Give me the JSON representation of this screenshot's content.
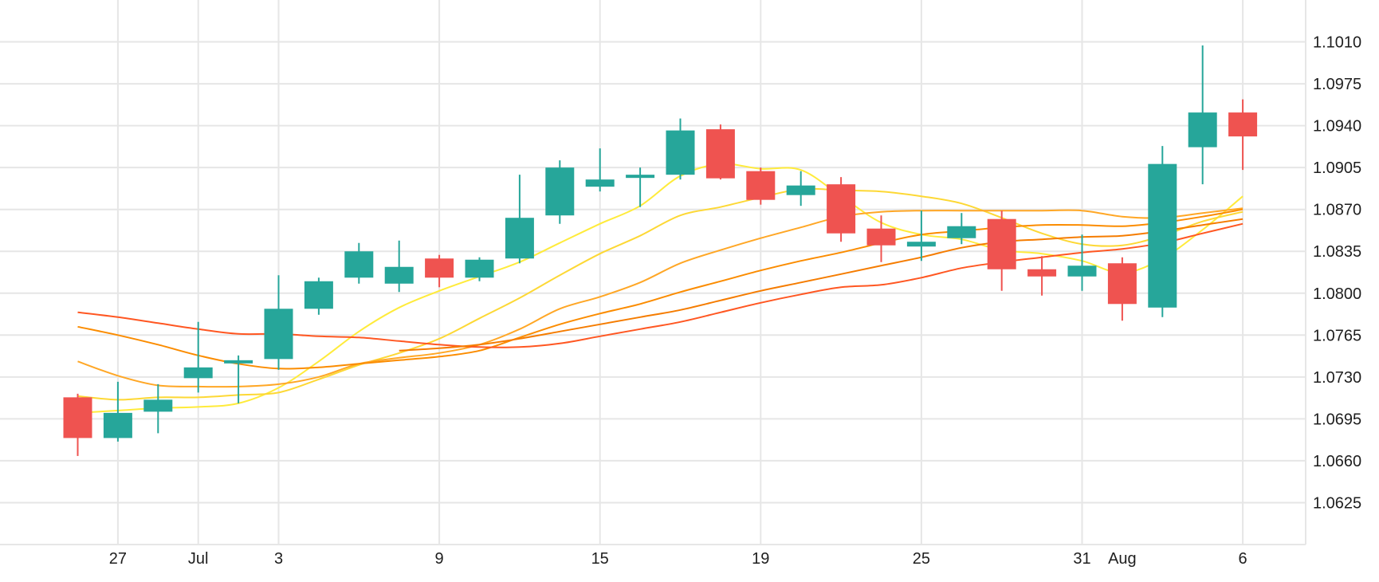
{
  "chart_data": {
    "type": "candlestick",
    "title": "",
    "xlabel": "",
    "ylabel": "",
    "ylim": [
      1.059,
      1.1045
    ],
    "grid": true,
    "y_ticks": [
      "1.0625",
      "1.0660",
      "1.0695",
      "1.0730",
      "1.0765",
      "1.0800",
      "1.0835",
      "1.0870",
      "1.0905",
      "1.0940",
      "1.0975",
      "1.1010"
    ],
    "x_ticks": [
      {
        "index": 1,
        "label": "27"
      },
      {
        "index": 3,
        "label": "Jul"
      },
      {
        "index": 5,
        "label": "3"
      },
      {
        "index": 9,
        "label": "9"
      },
      {
        "index": 13,
        "label": "15"
      },
      {
        "index": 17,
        "label": "19"
      },
      {
        "index": 21,
        "label": "25"
      },
      {
        "index": 25,
        "label": "31"
      },
      {
        "index": 26,
        "label": "Aug"
      },
      {
        "index": 29,
        "label": "6"
      }
    ],
    "x_grid_indices": [
      1,
      3,
      5,
      9,
      13,
      17,
      21,
      25,
      29
    ],
    "colors": {
      "up": "#26a69a",
      "down": "#ef5350"
    },
    "candles": [
      {
        "open": 1.0713,
        "high": 1.0716,
        "low": 1.0664,
        "close": 1.0679
      },
      {
        "open": 1.0679,
        "high": 1.0726,
        "low": 1.0676,
        "close": 1.07
      },
      {
        "open": 1.0701,
        "high": 1.0724,
        "low": 1.0683,
        "close": 1.0711
      },
      {
        "open": 1.0729,
        "high": 1.0776,
        "low": 1.0717,
        "close": 1.0738
      },
      {
        "open": 1.0742,
        "high": 1.0748,
        "low": 1.0708,
        "close": 1.0744
      },
      {
        "open": 1.0745,
        "high": 1.0815,
        "low": 1.0736,
        "close": 1.0787
      },
      {
        "open": 1.0787,
        "high": 1.0813,
        "low": 1.0782,
        "close": 1.081
      },
      {
        "open": 1.0813,
        "high": 1.0842,
        "low": 1.0808,
        "close": 1.0835
      },
      {
        "open": 1.0808,
        "high": 1.0844,
        "low": 1.0801,
        "close": 1.0822
      },
      {
        "open": 1.0829,
        "high": 1.0832,
        "low": 1.0805,
        "close": 1.0813
      },
      {
        "open": 1.0813,
        "high": 1.083,
        "low": 1.081,
        "close": 1.0828
      },
      {
        "open": 1.0829,
        "high": 1.0899,
        "low": 1.0825,
        "close": 1.0863
      },
      {
        "open": 1.0865,
        "high": 1.0911,
        "low": 1.0858,
        "close": 1.0905
      },
      {
        "open": 1.0889,
        "high": 1.0921,
        "low": 1.0885,
        "close": 1.0895
      },
      {
        "open": 1.0897,
        "high": 1.0905,
        "low": 1.0872,
        "close": 1.0899
      },
      {
        "open": 1.0899,
        "high": 1.0946,
        "low": 1.0895,
        "close": 1.0936
      },
      {
        "open": 1.0937,
        "high": 1.0941,
        "low": 1.0895,
        "close": 1.0896
      },
      {
        "open": 1.0902,
        "high": 1.0905,
        "low": 1.0874,
        "close": 1.0878
      },
      {
        "open": 1.0882,
        "high": 1.0902,
        "low": 1.0873,
        "close": 1.089
      },
      {
        "open": 1.0891,
        "high": 1.0897,
        "low": 1.0843,
        "close": 1.085
      },
      {
        "open": 1.0854,
        "high": 1.0865,
        "low": 1.0826,
        "close": 1.084
      },
      {
        "open": 1.0839,
        "high": 1.0869,
        "low": 1.0827,
        "close": 1.0843
      },
      {
        "open": 1.0846,
        "high": 1.0867,
        "low": 1.0841,
        "close": 1.0856
      },
      {
        "open": 1.0862,
        "high": 1.0869,
        "low": 1.0802,
        "close": 1.082
      },
      {
        "open": 1.082,
        "high": 1.0831,
        "low": 1.0798,
        "close": 1.0814
      },
      {
        "open": 1.0814,
        "high": 1.0849,
        "low": 1.0802,
        "close": 1.0823
      },
      {
        "open": 1.0825,
        "high": 1.083,
        "low": 1.0777,
        "close": 1.0791
      },
      {
        "open": 1.0788,
        "high": 1.0923,
        "low": 1.078,
        "close": 1.0908
      },
      {
        "open": 1.0922,
        "high": 1.1007,
        "low": 1.0891,
        "close": 1.0951
      },
      {
        "open": 1.0951,
        "high": 1.0962,
        "low": 1.0903,
        "close": 1.0931
      }
    ],
    "series": [
      {
        "color": "#ffeb3b",
        "values": [
          1.07,
          1.0702,
          1.0704,
          1.0705,
          1.0708,
          1.0721,
          1.0743,
          1.0768,
          1.0788,
          1.0802,
          1.0814,
          1.0826,
          1.0842,
          1.0858,
          1.0873,
          1.0898,
          1.0908,
          1.0904,
          1.0903,
          1.0881,
          1.0859,
          1.0849,
          1.0845,
          1.0836,
          1.0833,
          1.0827,
          1.0817,
          1.0829,
          1.0853,
          1.0881
        ]
      },
      {
        "color": "#fdd835",
        "values": [
          1.0714,
          1.0711,
          1.0713,
          1.0713,
          1.0715,
          1.0717,
          1.0728,
          1.074,
          1.075,
          1.0762,
          1.0779,
          1.0796,
          1.0815,
          1.0833,
          1.0848,
          1.0865,
          1.0872,
          1.088,
          1.0887,
          1.0886,
          1.0885,
          1.0881,
          1.0875,
          1.0863,
          1.085,
          1.0841,
          1.084,
          1.0848,
          1.086,
          1.0868
        ]
      },
      {
        "color": "#ffa726",
        "values": [
          1.0743,
          1.0731,
          1.0723,
          1.0722,
          1.0722,
          1.0724,
          1.073,
          1.0741,
          1.0746,
          1.075,
          1.0757,
          1.077,
          1.0787,
          1.0797,
          1.0809,
          1.0825,
          1.0836,
          1.0846,
          1.0855,
          1.0864,
          1.0868,
          1.0869,
          1.0869,
          1.0869,
          1.0869,
          1.0869,
          1.0864,
          1.0863,
          1.0867,
          1.0871
        ]
      },
      {
        "color": "#fb8c00",
        "values": [
          1.0772,
          1.0765,
          1.0757,
          1.0748,
          1.0741,
          1.0737,
          1.0738,
          1.0741,
          1.0744,
          1.0747,
          1.0752,
          1.0763,
          1.0774,
          1.0783,
          1.0791,
          1.0801,
          1.081,
          1.0819,
          1.0827,
          1.0834,
          1.0842,
          1.0849,
          1.0852,
          1.0855,
          1.0857,
          1.0857,
          1.0856,
          1.0859,
          1.0864,
          1.087
        ]
      },
      {
        "color": "#ff5722",
        "values": [
          1.0784,
          1.078,
          1.0775,
          1.077,
          1.0766,
          1.0766,
          1.0764,
          1.0763,
          1.076,
          1.0757,
          1.0755,
          1.0755,
          1.0758,
          1.0764,
          1.077,
          1.0776,
          1.0784,
          1.0792,
          1.0799,
          1.0805,
          1.0807,
          1.0813,
          1.0821,
          1.0826,
          1.083,
          1.0834,
          1.0837,
          1.0842,
          1.085,
          1.0858
        ]
      },
      {
        "color": "#f57c00",
        "values": [
          null,
          null,
          null,
          null,
          null,
          null,
          null,
          null,
          1.0752,
          1.0754,
          1.0757,
          1.0762,
          1.0768,
          1.0774,
          1.078,
          1.0786,
          1.0794,
          1.0802,
          1.0809,
          1.0816,
          1.0823,
          1.083,
          1.0838,
          1.0843,
          1.0845,
          1.0847,
          1.0848,
          1.0852,
          1.0857,
          1.0862
        ]
      }
    ]
  }
}
